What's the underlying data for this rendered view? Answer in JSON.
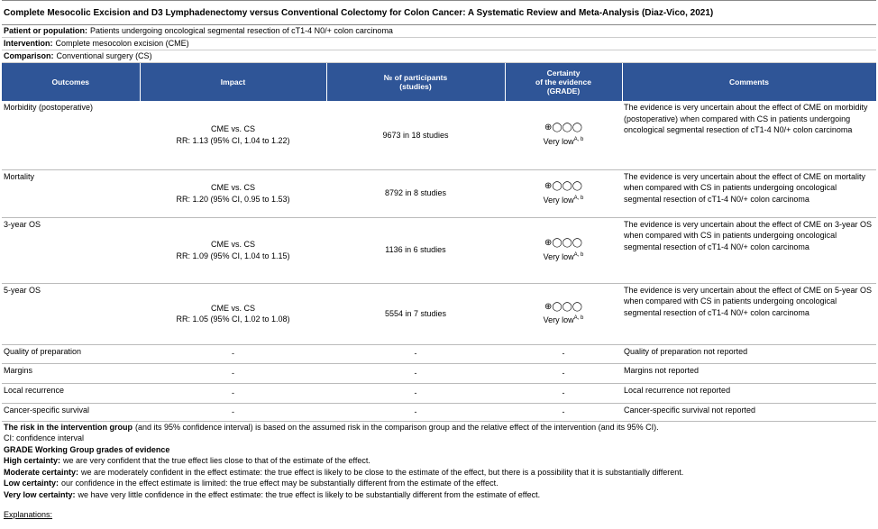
{
  "title": "Complete Mesocolic Excision and D3 Lymphadenectomy versus Conventional Colectomy for Colon Cancer: A Systematic Review and Meta-Analysis (Diaz-Vico, 2021)",
  "info": [
    {
      "label": "Patient or population:",
      "text": "Patients undergoing oncological segmental resection of cT1-4 N0/+ colon carcinoma"
    },
    {
      "label": "Intervention:",
      "text": "Complete mesocolon excision (CME)"
    },
    {
      "label": "Comparison:",
      "text": "Conventional surgery (CS)"
    }
  ],
  "table": {
    "headers": [
      "Outcomes",
      "Impact",
      "№ of participants\n(studies)",
      "Certainty\nof the evidence\n(GRADE)",
      "Comments"
    ],
    "rows": [
      {
        "outcome": "Morbidity (postoperative)",
        "impact": [
          "CME vs. CS",
          "RR: 1.13 (95% CI, 1.04 to 1.22)"
        ],
        "participants": "9673 in 18 studies",
        "certainty": {
          "symbols": "⊕◯◯◯",
          "label": "Very low",
          "footnotes": "A, b"
        },
        "comments": "The evidence is very uncertain about the effect of CME on morbidity (postoperative) when compared with CS in patients undergoing oncological segmental resection of cT1-4 N0/+ colon carcinoma"
      },
      {
        "outcome": "Mortality",
        "impact": [
          "CME vs. CS",
          "RR: 1.20 (95% CI, 0.95 to 1.53)"
        ],
        "participants": "8792 in 8 studies",
        "certainty": {
          "symbols": "⊕◯◯◯",
          "label": "Very low",
          "footnotes": "A, b"
        },
        "comments": "The evidence is very uncertain about the effect of CME on mortality when compared with CS in patients undergoing oncological segmental resection of cT1-4 N0/+ colon carcinoma"
      },
      {
        "outcome": "3-year OS",
        "impact": [
          "CME vs. CS",
          "RR: 1.09 (95% CI, 1.04 to 1.15)"
        ],
        "participants": "1136 in 6 studies",
        "certainty": {
          "symbols": "⊕◯◯◯",
          "label": "Very low",
          "footnotes": "A, b"
        },
        "comments": "The evidence is very uncertain about the effect of CME on 3-year OS when compared with CS in patients undergoing oncological segmental resection of cT1-4 N0/+ colon carcinoma"
      },
      {
        "outcome": "5-year OS",
        "impact": [
          "CME vs. CS",
          "RR: 1.05 (95% CI, 1.02 to 1.08)"
        ],
        "participants": "5554 in 7 studies",
        "certainty": {
          "symbols": "⊕◯◯◯",
          "label": "Very low",
          "footnotes": "A, b"
        },
        "comments": "The evidence is very uncertain about the effect of CME on 5-year OS when compared with CS in patients undergoing oncological segmental resection of cT1-4 N0/+ colon carcinoma"
      },
      {
        "outcome": "Quality of preparation",
        "impact": [
          "-"
        ],
        "participants": "-",
        "certainty": "-",
        "comments": "Quality of preparation not reported"
      },
      {
        "outcome": "Margins",
        "impact": [
          "-"
        ],
        "participants": "-",
        "certainty": "-",
        "comments": "Margins not reported"
      },
      {
        "outcome": "Local recurrence",
        "impact": [
          "-"
        ],
        "participants": "-",
        "certainty": "-",
        "comments": "Local recurrence not reported"
      },
      {
        "outcome": "Cancer-specific survival",
        "impact": [
          "-"
        ],
        "participants": "-",
        "certainty": "-",
        "comments": "Cancer-specific survival not reported"
      }
    ]
  },
  "footer": [
    {
      "bold": "The risk in the intervention group",
      "text": "(and its 95% confidence interval) is based on the assumed risk in the comparison group and the relative effect of the intervention (and its 95% CI)."
    },
    {
      "bold": "",
      "text": "CI: confidence interval"
    },
    {
      "bold": "GRADE Working Group grades of evidence",
      "text": ""
    },
    {
      "bold": "High certainty:",
      "text": "we are very confident that the true effect lies close to that of the estimate of the effect."
    },
    {
      "bold": "Moderate certainty:",
      "text": "we are moderately confident in the effect estimate: the true effect is likely to be close to the estimate of the effect, but there is a possibility that it is substantially different."
    },
    {
      "bold": "Low certainty:",
      "text": "our confidence in the effect estimate is limited: the true effect may be substantially different from the estimate of the effect."
    },
    {
      "bold": "Very low certainty:",
      "text": "we have very little confidence in the effect estimate: the true effect is likely to be substantially different from the estimate of effect."
    }
  ],
  "explanations": "Explanations:"
}
